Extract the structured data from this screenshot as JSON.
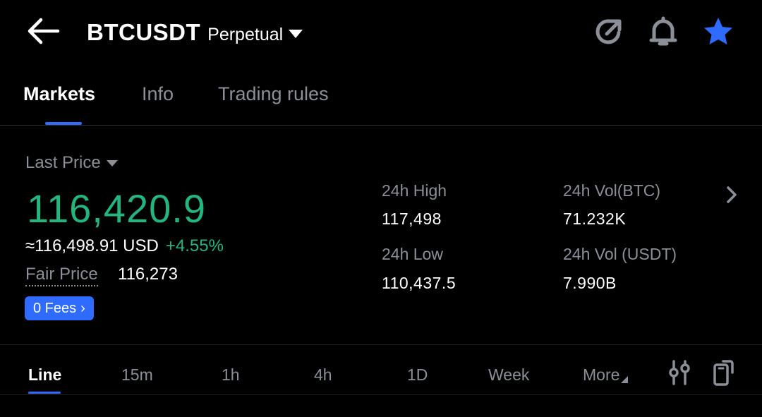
{
  "header": {
    "symbol": "BTCUSDT",
    "contract_type": "Perpetual",
    "icons": [
      "back-arrow-icon",
      "refresh-share-icon",
      "bell-icon",
      "star-icon"
    ],
    "star_color": "#2f6bff"
  },
  "tabs": [
    {
      "label": "Markets",
      "active": true
    },
    {
      "label": "Info",
      "active": false
    },
    {
      "label": "Trading rules",
      "active": false
    }
  ],
  "stats": {
    "last_price_label": "Last Price",
    "last_price": "116,420.9",
    "approx_usd": "≈116,498.91 USD",
    "change_pct": "+4.55%",
    "fair_price_label": "Fair Price",
    "fair_price": "116,273",
    "fees_label": "0 Fees",
    "high_24h_label": "24h High",
    "high_24h": "117,498",
    "low_24h_label": "24h Low",
    "low_24h": "110,437.5",
    "vol_btc_label": "24h Vol(BTC)",
    "vol_btc": "71.232K",
    "vol_usdt_label": "24h Vol (USDT)",
    "vol_usdt": "7.990B"
  },
  "chart_intervals": [
    {
      "label": "Line",
      "active": true
    },
    {
      "label": "15m",
      "active": false
    },
    {
      "label": "1h",
      "active": false
    },
    {
      "label": "4h",
      "active": false
    },
    {
      "label": "1D",
      "active": false
    },
    {
      "label": "Week",
      "active": false
    }
  ],
  "more_label": "More",
  "colors": {
    "accent": "#2f6bff",
    "positive": "#24b47e",
    "muted": "#8b8f97",
    "background": "#000000"
  }
}
